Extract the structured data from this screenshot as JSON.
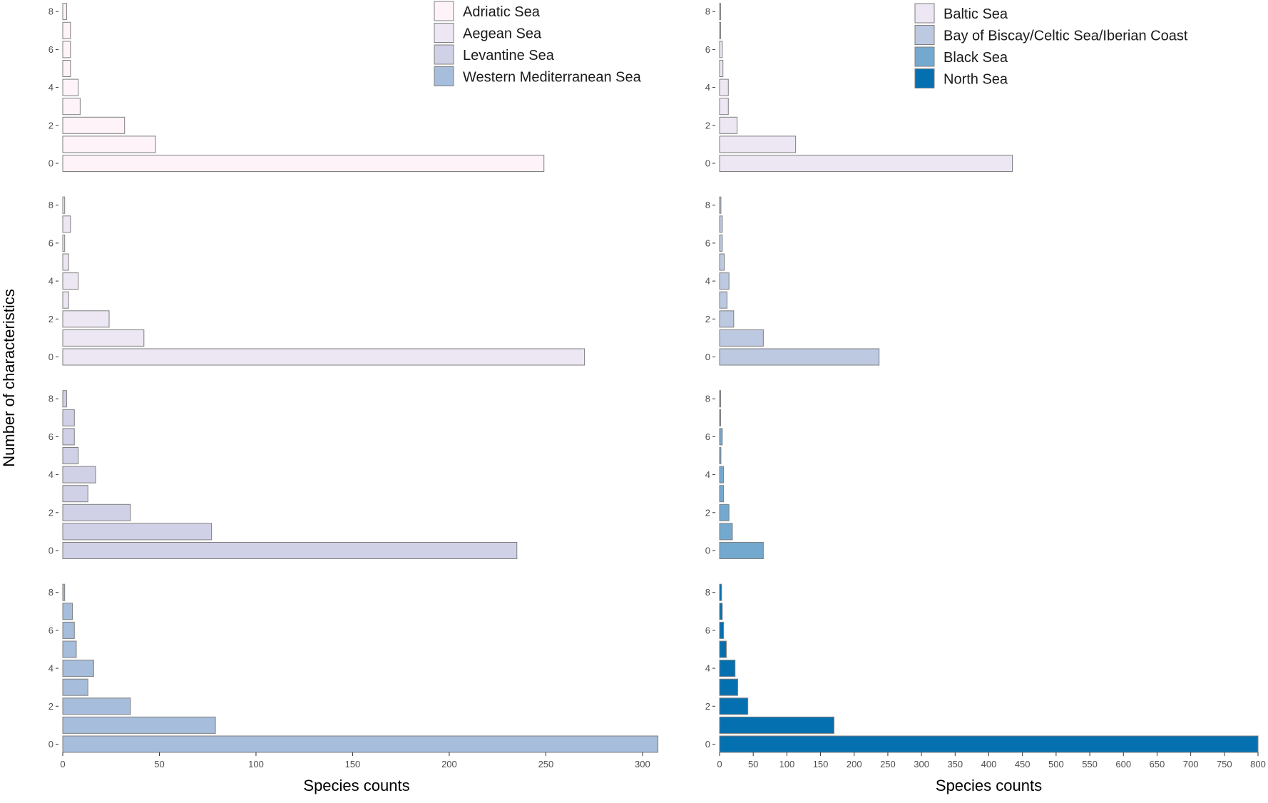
{
  "chart_data": {
    "type": "bar",
    "orientation": "horizontal",
    "ylabel": "Number of characteristics",
    "y_categories": [
      0,
      1,
      2,
      3,
      4,
      5,
      6,
      7,
      8
    ],
    "y_tick_labels": [
      "0",
      "2",
      "4",
      "6",
      "8"
    ],
    "columns": [
      {
        "xlabel": "Species counts",
        "xlim": [
          0,
          310
        ],
        "x_ticks": [
          "0",
          "50",
          "100",
          "150",
          "200",
          "250",
          "300"
        ],
        "legend": [
          "Adriatic Sea",
          "Aegean Sea",
          "Levantine Sea",
          "Western Mediterranean Sea"
        ],
        "panels": [
          {
            "name": "Adriatic Sea",
            "color": "#fdf3f8",
            "values": [
              249,
              48,
              32,
              9,
              8,
              4,
              4,
              4,
              2
            ]
          },
          {
            "name": "Aegean Sea",
            "color": "#ece7f2",
            "values": [
              270,
              42,
              24,
              3,
              8,
              3,
              1,
              4,
              1
            ]
          },
          {
            "name": "Levantine Sea",
            "color": "#d0d1e6",
            "values": [
              235,
              77,
              35,
              13,
              17,
              8,
              6,
              6,
              2
            ]
          },
          {
            "name": "Western Mediterranean Sea",
            "color": "#a6bddb",
            "values": [
              308,
              79,
              35,
              13,
              16,
              7,
              6,
              5,
              1
            ]
          }
        ]
      },
      {
        "xlabel": "Species counts",
        "xlim": [
          0,
          800
        ],
        "x_ticks": [
          "0",
          "50",
          "100",
          "150",
          "200",
          "250",
          "300",
          "350",
          "400",
          "450",
          "500",
          "550",
          "600",
          "650",
          "700",
          "750",
          "800"
        ],
        "legend": [
          "Baltic Sea",
          "Bay of Biscay/Celtic Sea/Iberian Coast",
          "Black Sea",
          "North Sea"
        ],
        "panels": [
          {
            "name": "Baltic Sea",
            "color": "#ece7f2",
            "values": [
              435,
              113,
              26,
              13,
              13,
              5,
              4,
              1,
              1
            ]
          },
          {
            "name": "Bay of Biscay/Celtic Sea/Iberian Coast",
            "color": "#bdc9e1",
            "values": [
              237,
              65,
              21,
              11,
              14,
              7,
              4,
              4,
              2
            ]
          },
          {
            "name": "Black Sea",
            "color": "#74a9cf",
            "values": [
              65,
              19,
              14,
              6,
              6,
              2,
              4,
              1,
              1
            ]
          },
          {
            "name": "North Sea",
            "color": "#0570b0",
            "values": [
              800,
              170,
              42,
              27,
              23,
              10,
              6,
              4,
              3
            ]
          }
        ]
      }
    ]
  }
}
